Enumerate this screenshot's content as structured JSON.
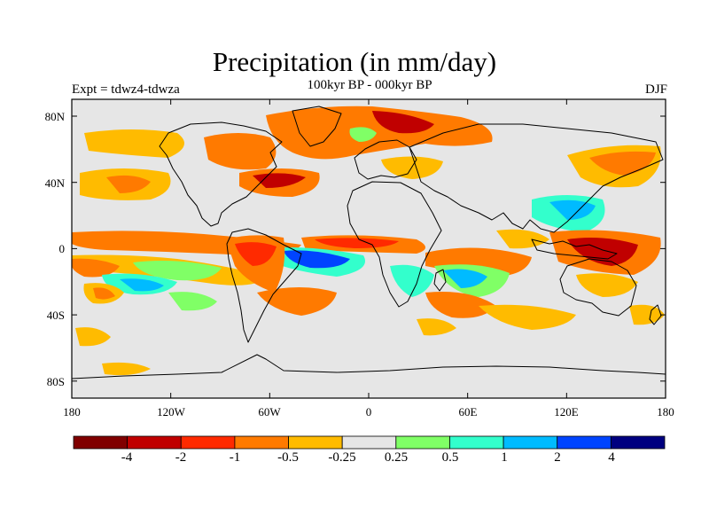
{
  "chart_data": {
    "type": "heatmap",
    "title": "Precipitation (in mm/day)",
    "subtitle": "100kyr BP - 000kyr BP",
    "experiment": "Expt = tdwz4-tdwza",
    "season": "DJF",
    "units": "mm/day",
    "x_ticks": [
      "180",
      "120W",
      "60W",
      "0",
      "60E",
      "120E",
      "180"
    ],
    "y_ticks": [
      "80N",
      "40N",
      "0",
      "40S",
      "80S"
    ],
    "colorbar": {
      "labels": [
        "-4",
        "-2",
        "-1",
        "-0.5",
        "-0.25",
        "0.25",
        "0.5",
        "1",
        "2",
        "4"
      ],
      "colors": [
        "#800000",
        "#c00000",
        "#ff2a00",
        "#ff7a00",
        "#ffbb00",
        "#e6e6e6",
        "#80ff66",
        "#33ffcc",
        "#00bbff",
        "#0044ff",
        "#000080"
      ]
    },
    "background": "#e6e6e6",
    "coast_color": "#000000"
  }
}
